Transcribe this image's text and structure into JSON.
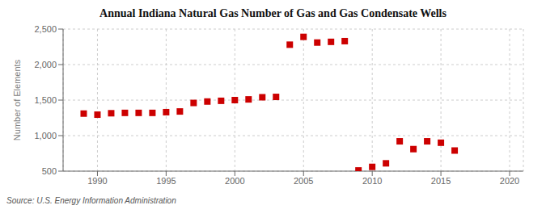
{
  "chart_data": {
    "type": "scatter",
    "title": "Annual Indiana Natural Gas Number of Gas and Gas Condensate Wells",
    "y_label": "Number of Elements",
    "annotations": [
      "Source: U.S. Energy Information Administration"
    ],
    "x": [
      1989,
      1990,
      1991,
      1992,
      1993,
      1994,
      1995,
      1996,
      1997,
      1998,
      1999,
      2000,
      2001,
      2002,
      2003,
      2004,
      2005,
      2006,
      2007,
      2008,
      2009,
      2010,
      2011,
      2012,
      2013,
      2014,
      2015,
      2016
    ],
    "values": [
      1310,
      1295,
      1315,
      1320,
      1320,
      1320,
      1330,
      1340,
      1460,
      1480,
      1490,
      1500,
      1510,
      1540,
      1545,
      2280,
      2390,
      2310,
      2320,
      2330,
      510,
      560,
      610,
      920,
      810,
      920,
      900,
      790
    ],
    "color": "#cc0000",
    "marker": "square",
    "xlim": [
      1987.5,
      2021
    ],
    "xticks": [
      1990,
      1995,
      2000,
      2005,
      2010,
      2015,
      2020
    ],
    "ylim": [
      500,
      2500
    ],
    "yticks": [
      500,
      {
        "value": 1000,
        "label": "1,000"
      },
      {
        "value": 1500,
        "label": "1,500"
      },
      {
        "value": 2000,
        "label": "2,000"
      },
      {
        "value": 2500,
        "label": "2,500"
      }
    ],
    "grid": true
  }
}
